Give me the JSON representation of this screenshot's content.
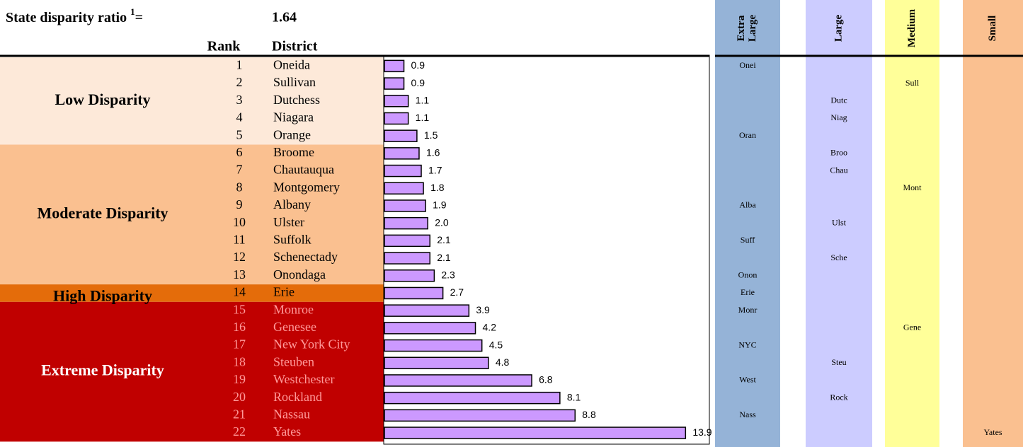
{
  "header": {
    "label": "State disparity ratio ",
    "superscript": "1",
    "equals": "=",
    "value": 1.64
  },
  "columns": {
    "rank": "Rank",
    "district": "District"
  },
  "groups": [
    {
      "label": "Low Disparity",
      "color": "#fde9d9",
      "text_color": "#000000",
      "ranks": [
        1,
        2,
        3,
        4,
        5
      ]
    },
    {
      "label": "Moderate Disparity",
      "color": "#fac090",
      "text_color": "#000000",
      "ranks": [
        6,
        7,
        8,
        9,
        10,
        11,
        12,
        13
      ]
    },
    {
      "label": "High Disparity",
      "color": "#e46c0a",
      "text_color": "#000000",
      "ranks": [
        14
      ]
    },
    {
      "label": "Extreme Disparity",
      "color": "#c00000",
      "text_color": "#ff9999",
      "ranks": [
        15,
        16,
        17,
        18,
        19,
        20,
        21,
        22
      ]
    }
  ],
  "chart_data": {
    "type": "bar",
    "orientation": "horizontal",
    "categories": [
      "Oneida",
      "Sullivan",
      "Dutchess",
      "Niagara",
      "Orange",
      "Broome",
      "Chautauqua",
      "Montgomery",
      "Albany",
      "Ulster",
      "Suffolk",
      "Schenectady",
      "Onondaga",
      "Erie",
      "Monroe",
      "Genesee",
      "New York City",
      "Steuben",
      "Westchester",
      "Rockland",
      "Nassau",
      "Yates"
    ],
    "values": [
      0.9,
      0.9,
      1.1,
      1.1,
      1.5,
      1.6,
      1.7,
      1.8,
      1.9,
      2.0,
      2.1,
      2.1,
      2.3,
      2.7,
      3.9,
      4.2,
      4.5,
      4.8,
      6.8,
      8.1,
      8.8,
      13.9
    ],
    "value_labels": [
      "0.9",
      "0.9",
      "1.1",
      "1.1",
      "1.5",
      "1.6",
      "1.7",
      "1.8",
      "1.9",
      "2.0",
      "2.1",
      "2.1",
      "2.3",
      "2.7",
      "3.9",
      "4.2",
      "4.5",
      "4.8",
      "6.8",
      "8.1",
      "8.8",
      "13.9"
    ],
    "color": "#cc99ff",
    "xlim": [
      0,
      15
    ]
  },
  "size_classes": [
    {
      "label": "Extra Large",
      "color": "#95b3d7",
      "abbrevs": [
        "Onei",
        null,
        null,
        null,
        "Oran",
        null,
        null,
        null,
        "Alba",
        null,
        "Suff",
        null,
        "Onon",
        "Erie",
        "Monr",
        null,
        "NYC",
        null,
        "West",
        null,
        "Nass",
        null
      ]
    },
    {
      "label": "Large",
      "color": "#ccccff",
      "abbrevs": [
        null,
        null,
        "Dutc",
        "Niag",
        null,
        "Broo",
        "Chau",
        null,
        null,
        "Ulst",
        null,
        "Sche",
        null,
        null,
        null,
        null,
        null,
        "Steu",
        null,
        "Rock",
        null,
        null
      ]
    },
    {
      "label": "Medium",
      "color": "#ffff99",
      "abbrevs": [
        null,
        "Sull",
        null,
        null,
        null,
        null,
        null,
        "Mont",
        null,
        null,
        null,
        null,
        null,
        null,
        null,
        "Gene",
        null,
        null,
        null,
        null,
        null,
        null
      ]
    },
    {
      "label": "Small",
      "color": "#fac090",
      "abbrevs": [
        null,
        null,
        null,
        null,
        null,
        null,
        null,
        null,
        null,
        null,
        null,
        null,
        null,
        null,
        null,
        null,
        null,
        null,
        null,
        null,
        null,
        "Yates"
      ]
    }
  ]
}
